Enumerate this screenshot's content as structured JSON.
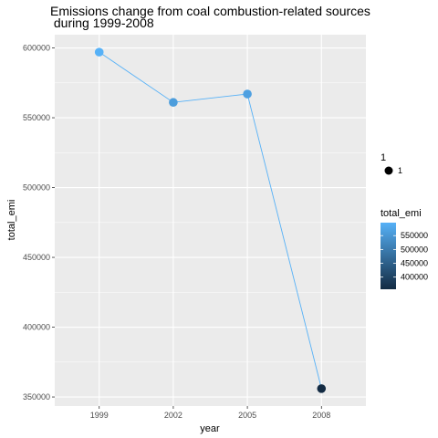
{
  "chart_data": {
    "type": "line",
    "title_lines": [
      "Emissions change from coal combustion-related sources",
      " during 1999-2008"
    ],
    "xlabel": "year",
    "ylabel": "total_emi",
    "categories": [
      "1999",
      "2002",
      "2005",
      "2008"
    ],
    "series": [
      {
        "values": [
          597000,
          561000,
          567000,
          356000
        ]
      }
    ],
    "ylim": [
      343500,
      609500
    ],
    "y_ticks": [
      350000,
      400000,
      450000,
      500000,
      550000,
      600000
    ],
    "y_tick_labels": [
      "350000",
      "400000",
      "450000",
      "500000",
      "550000",
      "600000"
    ],
    "grid": true,
    "panel_background": "#ebebeb",
    "line_color": "#56b1f7",
    "color_scale": {
      "low": "#132b43",
      "high": "#56b1f7",
      "min": 356000,
      "max": 597000
    },
    "legend_placement": "right",
    "legend_size": {
      "title": "1",
      "label": "1"
    },
    "legend_color": {
      "title": "total_emi",
      "ticks": [
        550000,
        500000,
        450000,
        400000
      ],
      "tick_labels": [
        "550000",
        "500000",
        "450000",
        "400000"
      ]
    }
  }
}
